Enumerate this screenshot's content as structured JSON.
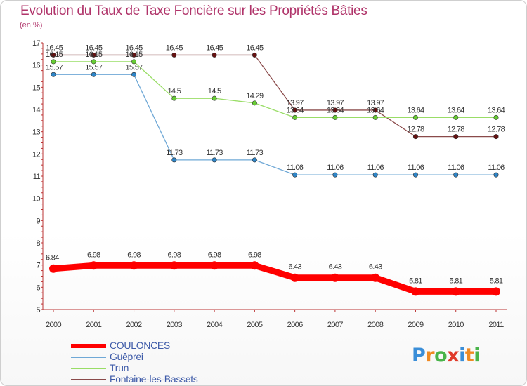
{
  "title": "Evolution du Taux de Taxe Foncière sur les Propriétés Bâties",
  "subtitle": "(en %)",
  "logo": {
    "text": "Proxiti",
    "letters": [
      "P",
      "r",
      "o",
      "x",
      "i",
      "t",
      "i"
    ],
    "colors": [
      "#3a8ed8",
      "#ef8a22",
      "#49b44a",
      "#e03a2a",
      "#3a8ed8",
      "#ef8a22",
      "#49b44a"
    ]
  },
  "chart_data": {
    "type": "line",
    "title": "Evolution du Taux de Taxe Foncière sur les Propriétés Bâties",
    "ylabel": "(en %)",
    "xlabel": "",
    "categories": [
      "2000",
      "2001",
      "2002",
      "2003",
      "2004",
      "2005",
      "2006",
      "2007",
      "2008",
      "2009",
      "2010",
      "2011"
    ],
    "ylim": [
      5,
      17
    ],
    "yticks": [
      "5",
      "6",
      "7",
      "8",
      "9",
      "10",
      "11",
      "12",
      "13",
      "14",
      "15",
      "16",
      "17"
    ],
    "grid": false,
    "legend_position": "bottom-left",
    "series": [
      {
        "name": "COULONCES",
        "color": "#ff0000",
        "marker_color": "#ff0000",
        "emphasis": true,
        "values": [
          6.84,
          6.98,
          6.98,
          6.98,
          6.98,
          6.98,
          6.43,
          6.43,
          6.43,
          5.81,
          5.81,
          5.81
        ],
        "labels": [
          "6.84",
          "6.98",
          "6.98",
          "6.98",
          "6.98",
          "6.98",
          "6.43",
          "6.43",
          "6.43",
          "5.81",
          "5.81",
          "5.81"
        ]
      },
      {
        "name": "Guêprei",
        "color": "#6fa8d6",
        "marker_color": "#2e86c9",
        "emphasis": false,
        "values": [
          15.57,
          15.57,
          15.57,
          11.73,
          11.73,
          11.73,
          11.06,
          11.06,
          11.06,
          11.06,
          11.06,
          11.06
        ],
        "labels": [
          "15.57",
          "15.57",
          "15.57",
          "11.73",
          "11.73",
          "11.73",
          "11.06",
          "11.06",
          "11.06",
          "11.06",
          "11.06",
          "11.06"
        ]
      },
      {
        "name": "Trun",
        "color": "#99dd66",
        "marker_color": "#66cc33",
        "emphasis": false,
        "values": [
          16.15,
          16.15,
          16.15,
          14.5,
          14.5,
          14.29,
          13.64,
          13.64,
          13.64,
          13.64,
          13.64,
          13.64
        ],
        "labels": [
          "16.15",
          "16.15",
          "16.15",
          "14.5",
          "14.5",
          "14.29",
          "13.64",
          "13.64",
          "13.64",
          "13.64",
          "13.64",
          "13.64"
        ]
      },
      {
        "name": "Fontaine-les-Bassets",
        "color": "#8a4a4a",
        "marker_color": "#661111",
        "emphasis": false,
        "values": [
          16.45,
          16.45,
          16.45,
          16.45,
          16.45,
          16.45,
          13.97,
          13.97,
          13.97,
          12.78,
          12.78,
          12.78
        ],
        "labels": [
          "16.45",
          "16.45",
          "16.45",
          "16.45",
          "16.45",
          "16.45",
          "13.97",
          "13.97",
          "13.97",
          "12.78",
          "12.78",
          "12.78"
        ]
      }
    ]
  }
}
